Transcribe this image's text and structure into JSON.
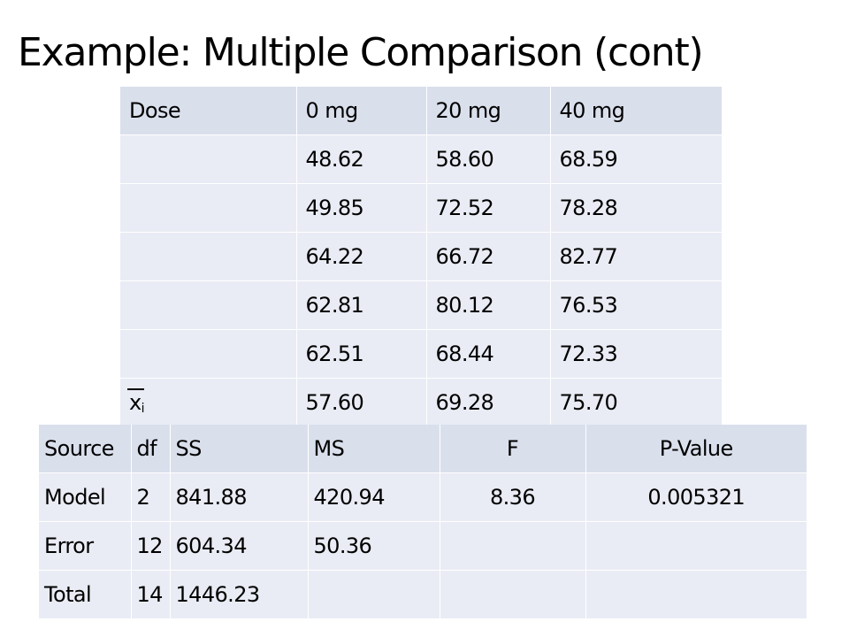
{
  "slide": {
    "title": "Example: Multiple Comparison (cont)"
  },
  "dose_table": {
    "header": {
      "label": "Dose",
      "doses": [
        "0 mg",
        "20 mg",
        "40 mg"
      ]
    },
    "rows": [
      {
        "label": "",
        "values": [
          "48.62",
          "58.60",
          "68.59"
        ]
      },
      {
        "label": "",
        "values": [
          "49.85",
          "72.52",
          "78.28"
        ]
      },
      {
        "label": "",
        "values": [
          "64.22",
          "66.72",
          "82.77"
        ]
      },
      {
        "label": "",
        "values": [
          "62.81",
          "80.12",
          "76.53"
        ]
      },
      {
        "label": "",
        "values": [
          "62.51",
          "68.44",
          "72.33"
        ]
      }
    ],
    "mean_row": {
      "symbol": "x",
      "subscript": "i",
      "values": [
        "57.60",
        "69.28",
        "75.70"
      ]
    }
  },
  "anova_table": {
    "headers": [
      "Source",
      "df",
      "SS",
      "MS",
      "F",
      "P-Value"
    ],
    "rows": [
      [
        "Model",
        "2",
        "841.88",
        "420.94",
        "8.36",
        "0.005321"
      ],
      [
        "Error",
        "12",
        "604.34",
        "50.36",
        "",
        ""
      ],
      [
        "Total",
        "14",
        "1446.23",
        "",
        "",
        ""
      ]
    ]
  },
  "colors": {
    "header_fill": "#dadfec",
    "cell_fill": "#e9ecf4",
    "text": "#000000"
  }
}
